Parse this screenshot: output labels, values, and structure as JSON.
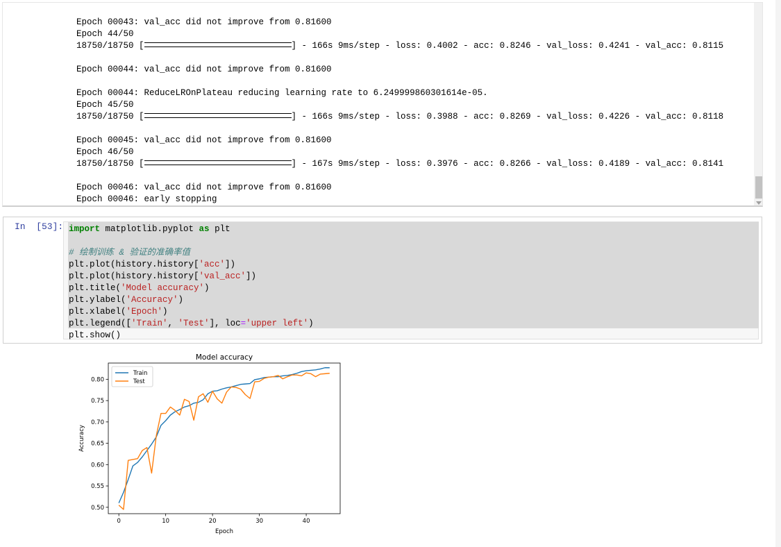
{
  "output": {
    "lines": [
      {
        "type": "text",
        "text": "Epoch 00043: val_acc did not improve from 0.81600"
      },
      {
        "type": "text",
        "text": "Epoch 44/50"
      },
      {
        "type": "progress",
        "steps": "18750/18750",
        "time": "166s 9ms/step",
        "loss": "0.4002",
        "acc": "0.8246",
        "val_loss": "0.4241",
        "val_acc": "0.8115"
      },
      {
        "type": "blank"
      },
      {
        "type": "text",
        "text": "Epoch 00044: val_acc did not improve from 0.81600"
      },
      {
        "type": "blank"
      },
      {
        "type": "text",
        "text": "Epoch 00044: ReduceLROnPlateau reducing learning rate to 6.249999860301614e-05."
      },
      {
        "type": "text",
        "text": "Epoch 45/50"
      },
      {
        "type": "progress",
        "steps": "18750/18750",
        "time": "166s 9ms/step",
        "loss": "0.3988",
        "acc": "0.8269",
        "val_loss": "0.4226",
        "val_acc": "0.8118"
      },
      {
        "type": "blank"
      },
      {
        "type": "text",
        "text": "Epoch 00045: val_acc did not improve from 0.81600"
      },
      {
        "type": "text",
        "text": "Epoch 46/50"
      },
      {
        "type": "progress",
        "steps": "18750/18750",
        "time": "167s 9ms/step",
        "loss": "0.3976",
        "acc": "0.8266",
        "val_loss": "0.4189",
        "val_acc": "0.8141"
      },
      {
        "type": "blank"
      },
      {
        "type": "text",
        "text": "Epoch 00046: val_acc did not improve from 0.81600"
      },
      {
        "type": "text",
        "text": "Epoch 00046: early stopping"
      }
    ]
  },
  "cell": {
    "prompt": "In  [53]:",
    "code": [
      [
        {
          "t": "import",
          "c": "kw"
        },
        {
          "t": " matplotlib.pyplot "
        },
        {
          "t": "as",
          "c": "kw"
        },
        {
          "t": " plt"
        }
      ],
      [],
      [
        {
          "t": "# 绘制训练 & 验证的准确率值",
          "c": "cm"
        }
      ],
      [
        {
          "t": "plt.plot(history.history["
        },
        {
          "t": "'acc'",
          "c": "st"
        },
        {
          "t": "])"
        }
      ],
      [
        {
          "t": "plt.plot(history.history["
        },
        {
          "t": "'val_acc'",
          "c": "st"
        },
        {
          "t": "])"
        }
      ],
      [
        {
          "t": "plt.title("
        },
        {
          "t": "'Model accuracy'",
          "c": "st"
        },
        {
          "t": ")"
        }
      ],
      [
        {
          "t": "plt.ylabel("
        },
        {
          "t": "'Accuracy'",
          "c": "st"
        },
        {
          "t": ")"
        }
      ],
      [
        {
          "t": "plt.xlabel("
        },
        {
          "t": "'Epoch'",
          "c": "st"
        },
        {
          "t": ")"
        }
      ],
      [
        {
          "t": "plt.legend(["
        },
        {
          "t": "'Train'",
          "c": "st"
        },
        {
          "t": ", "
        },
        {
          "t": "'Test'",
          "c": "st"
        },
        {
          "t": "], loc"
        },
        {
          "t": "=",
          "c": "op"
        },
        {
          "t": "'upper left'",
          "c": "st"
        },
        {
          "t": ")"
        }
      ],
      [
        {
          "t": "plt.show()"
        }
      ]
    ]
  },
  "chart_data": {
    "type": "line",
    "title": "Model accuracy",
    "xlabel": "Epoch",
    "ylabel": "Accuracy",
    "xlim": [
      -2.25,
      47.25
    ],
    "ylim": [
      0.485,
      0.838
    ],
    "xticks": [
      0,
      10,
      20,
      30,
      40
    ],
    "yticks": [
      0.5,
      0.55,
      0.6,
      0.65,
      0.7,
      0.75,
      0.8
    ],
    "legend_position": "upper-left",
    "grid": false,
    "series": [
      {
        "name": "Train",
        "color": "#1f77b4",
        "values": [
          0.51,
          0.535,
          0.565,
          0.597,
          0.605,
          0.618,
          0.633,
          0.648,
          0.665,
          0.692,
          0.703,
          0.716,
          0.724,
          0.729,
          0.735,
          0.738,
          0.744,
          0.746,
          0.752,
          0.766,
          0.772,
          0.773,
          0.777,
          0.78,
          0.782,
          0.785,
          0.788,
          0.789,
          0.79,
          0.799,
          0.801,
          0.804,
          0.805,
          0.806,
          0.806,
          0.808,
          0.809,
          0.811,
          0.814,
          0.818,
          0.82,
          0.821,
          0.822,
          0.824,
          0.827,
          0.827
        ]
      },
      {
        "name": "Test",
        "color": "#ff7f0e",
        "values": [
          0.505,
          0.495,
          0.61,
          0.612,
          0.614,
          0.633,
          0.64,
          0.58,
          0.668,
          0.72,
          0.72,
          0.735,
          0.727,
          0.716,
          0.753,
          0.748,
          0.704,
          0.759,
          0.766,
          0.746,
          0.772,
          0.754,
          0.744,
          0.77,
          0.782,
          0.781,
          0.777,
          0.764,
          0.755,
          0.794,
          0.795,
          0.802,
          0.805,
          0.806,
          0.809,
          0.801,
          0.806,
          0.81,
          0.81,
          0.808,
          0.815,
          0.813,
          0.806,
          0.812,
          0.813,
          0.814
        ]
      }
    ]
  }
}
